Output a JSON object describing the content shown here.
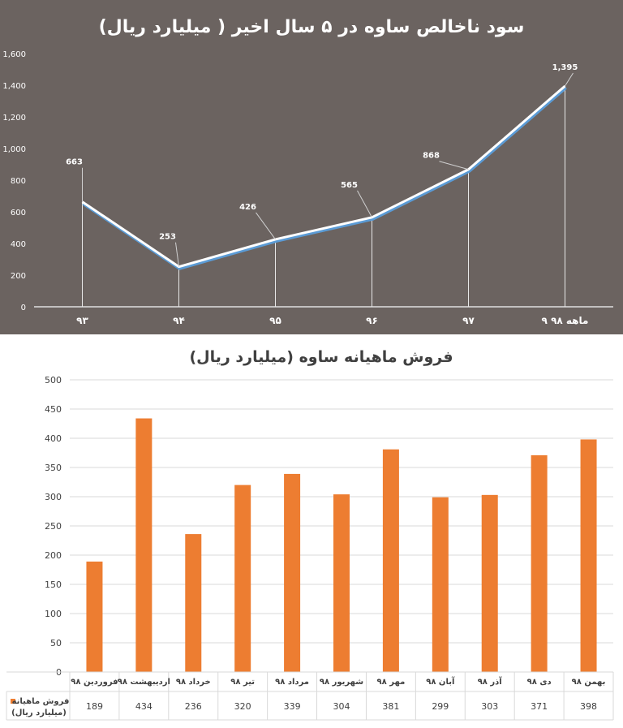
{
  "chart_data": [
    {
      "type": "line",
      "title": "سود ناخالص ساوه در ۵ سال اخیر ( میلیارد ریال)",
      "categories": [
        "۹۳",
        "۹۴",
        "۹۵",
        "۹۶",
        "۹۷",
        "۹ ماهه ۹۸"
      ],
      "values": [
        663,
        253,
        426,
        565,
        868,
        1395
      ],
      "value_labels": [
        "663",
        "253",
        "426",
        "565",
        "868",
        "1,395"
      ],
      "yticks": [
        "0",
        "200",
        "400",
        "600",
        "800",
        "1,000",
        "1,200",
        "1,400",
        "1,600"
      ],
      "ylim": [
        0,
        1600
      ],
      "colors": {
        "background": "#6b6360",
        "line": "#ffffff",
        "line_shadow": "#5b9bd5",
        "text": "#ffffff"
      }
    },
    {
      "type": "bar",
      "title": "فروش ماهیانه ساوه (میلیارد ریال)",
      "categories": [
        "فروردین ۹۸",
        "اردیبهشت ۹۸",
        "خرداد ۹۸",
        "تیر ۹۸",
        "مرداد ۹۸",
        "شهریور ۹۸",
        "مهر ۹۸",
        "آبان ۹۸",
        "آذر ۹۸",
        "دی ۹۸",
        "بهمن ۹۸"
      ],
      "series": [
        {
          "name": "فروش ماهیانه (میلیارد ریال)",
          "values": [
            189,
            434,
            236,
            320,
            339,
            304,
            381,
            299,
            303,
            371,
            398
          ]
        }
      ],
      "legend_line1": "فروش ماهیانه",
      "legend_line2": "(میلیارد ریال)",
      "yticks": [
        "0",
        "50",
        "100",
        "150",
        "200",
        "250",
        "300",
        "350",
        "400",
        "450",
        "500"
      ],
      "ylim": [
        0,
        500
      ],
      "colors": {
        "bar": "#ed7d31",
        "grid": "#d9d9d9",
        "text": "#404040"
      }
    }
  ]
}
